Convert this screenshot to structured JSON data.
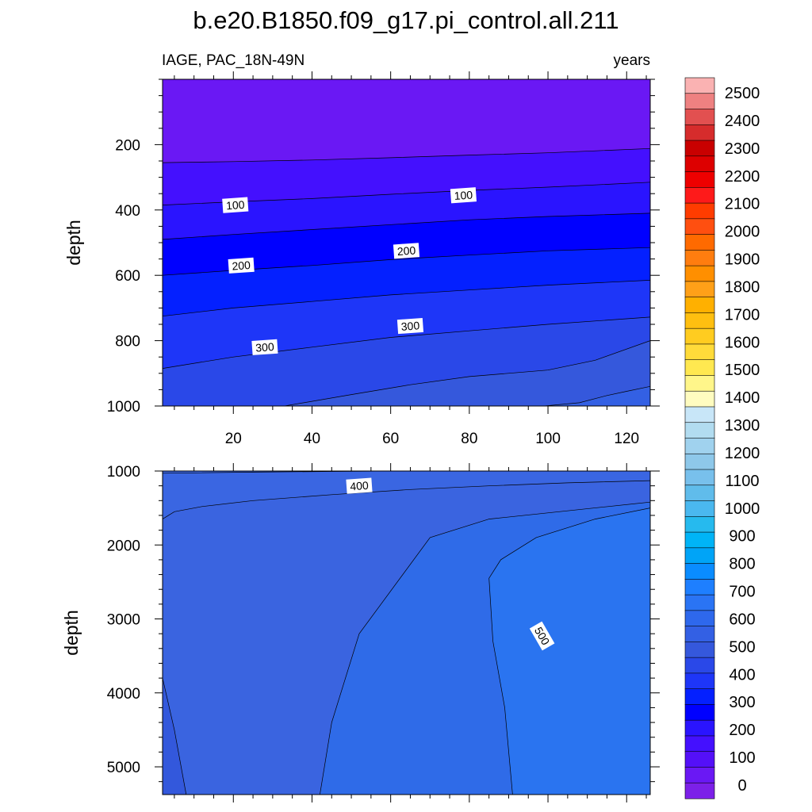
{
  "chart_data": [
    {
      "type": "contour",
      "title": "b.e20.B1850.f09_g17.pi_control.all.211",
      "left_string": "IAGE, PAC_18N-49N",
      "right_string": "years",
      "ylabel": "depth",
      "xlim": [
        2,
        126
      ],
      "ylim": [
        1000,
        0
      ],
      "xticks": [
        20,
        40,
        60,
        80,
        100,
        120
      ],
      "yticks": [
        200,
        400,
        600,
        800,
        1000
      ],
      "contour_lines": [
        {
          "level": 50,
          "x": [
            2,
            20,
            40,
            60,
            80,
            100,
            126
          ],
          "y": [
            255,
            252,
            247,
            240,
            232,
            225,
            212
          ]
        },
        {
          "level": 100,
          "x": [
            2,
            20,
            40,
            60,
            80,
            100,
            126
          ],
          "y": [
            385,
            375,
            365,
            352,
            340,
            330,
            315
          ]
        },
        {
          "level": 150,
          "x": [
            2,
            20,
            40,
            60,
            80,
            100,
            126
          ],
          "y": [
            490,
            475,
            460,
            445,
            430,
            420,
            410
          ]
        },
        {
          "level": 200,
          "x": [
            2,
            20,
            40,
            60,
            80,
            100,
            126
          ],
          "y": [
            600,
            585,
            570,
            552,
            538,
            525,
            515
          ]
        },
        {
          "level": 250,
          "x": [
            2,
            20,
            40,
            60,
            80,
            100,
            126
          ],
          "y": [
            725,
            700,
            680,
            660,
            645,
            630,
            615
          ]
        },
        {
          "level": 300,
          "x": [
            2,
            20,
            40,
            60,
            80,
            100,
            126
          ],
          "y": [
            885,
            850,
            820,
            790,
            770,
            750,
            728
          ]
        },
        {
          "level": 350,
          "x": [
            33,
            50,
            65,
            80,
            100,
            112,
            126
          ],
          "y": [
            1000,
            965,
            935,
            910,
            890,
            860,
            800
          ]
        },
        {
          "level": 400,
          "x": [
            99,
            108,
            115,
            120,
            126
          ],
          "y": [
            1000,
            990,
            968,
            955,
            940
          ]
        }
      ],
      "contour_labels": [
        {
          "text": "100",
          "x": 20.5,
          "y": 385
        },
        {
          "text": "100",
          "x": 78.5,
          "y": 355
        },
        {
          "text": "200",
          "x": 22,
          "y": 570
        },
        {
          "text": "200",
          "x": 64,
          "y": 525
        },
        {
          "text": "300",
          "x": 28,
          "y": 820
        },
        {
          "text": "300",
          "x": 65,
          "y": 755
        }
      ]
    },
    {
      "type": "contour",
      "ylabel": "depth",
      "xlim": [
        2,
        126
      ],
      "ylim": [
        5375,
        1000
      ],
      "xticks": [
        20,
        40,
        60,
        80,
        100,
        120
      ],
      "yticks": [
        1000,
        2000,
        3000,
        4000,
        5000
      ],
      "contour_lines": [
        {
          "level": 400,
          "x": [
            2,
            10,
            25,
            45,
            60,
            80,
            100,
            126
          ],
          "y": [
            1030,
            1025,
            1015,
            1005,
            1000,
            1000,
            1000,
            1000
          ]
        },
        {
          "level": 450,
          "x": [
            2,
            5,
            12,
            25,
            45,
            65,
            85,
            105,
            126
          ],
          "y": [
            1650,
            1550,
            1480,
            1400,
            1320,
            1250,
            1200,
            1160,
            1130
          ]
        },
        {
          "level": 500,
          "x": [
            42,
            45,
            52,
            70,
            85,
            126
          ],
          "y": [
            5375,
            4400,
            3200,
            1900,
            1650,
            1420
          ]
        },
        {
          "level": 550,
          "x": [
            91,
            89,
            86,
            85,
            88,
            97,
            112,
            126
          ],
          "y": [
            5375,
            4200,
            3300,
            2450,
            2200,
            1900,
            1650,
            1500
          ]
        },
        {
          "level": 600,
          "x": [
            2,
            5,
            8
          ],
          "y": [
            3800,
            4500,
            5375
          ]
        }
      ],
      "contour_labels": [
        {
          "text": "400",
          "x": 52,
          "y": 1200
        },
        {
          "text": "500",
          "x": 98.5,
          "y": 3230
        }
      ]
    }
  ],
  "colorbar": {
    "ticks": [
      "2500",
      "2400",
      "2300",
      "2200",
      "2100",
      "2000",
      "1900",
      "1800",
      "1700",
      "1600",
      "1500",
      "1400",
      "1300",
      "1200",
      "1100",
      "1000",
      "900",
      "800",
      "700",
      "600",
      "500",
      "400",
      "300",
      "200",
      "100",
      "0"
    ],
    "colors": [
      "#fab2b2",
      "#ee8181",
      "#e25050",
      "#d62c2c",
      "#c90000",
      "#dd0000",
      "#ee0000",
      "#fe1a1a",
      "#ff3c00",
      "#ff4f10",
      "#ff6a00",
      "#ff7d0f",
      "#ff8f00",
      "#ffa018",
      "#ffb000",
      "#ffbf10",
      "#ffcc20",
      "#ffdb3a",
      "#ffe850",
      "#fff68a",
      "#fffcc0",
      "#c8e6f8",
      "#b2dcf0",
      "#a0d2ee",
      "#8ec8ea",
      "#78c0ec",
      "#60bceb",
      "#4ab8ef",
      "#26baee",
      "#00b4f7",
      "#00a4f7",
      "#0a8cff",
      "#1e7fff",
      "#2a74f4",
      "#2e68ec",
      "#3360e4",
      "#3558dc",
      "#2a48e8",
      "#1e36f8",
      "#0420ff",
      "#0000ff",
      "#2a14ff",
      "#4410fe",
      "#5410f8",
      "#6a18f4",
      "#7c20e8"
    ]
  }
}
